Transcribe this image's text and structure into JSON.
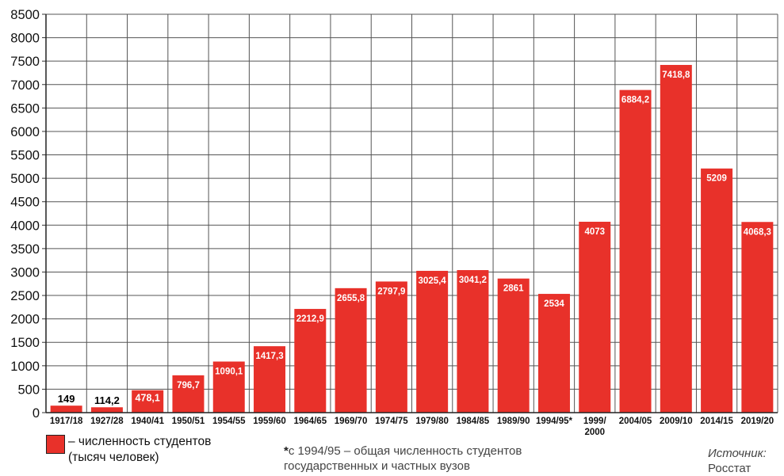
{
  "chart_data": {
    "type": "bar",
    "categories": [
      "1917/18",
      "1927/28",
      "1940/41",
      "1950/51",
      "1954/55",
      "1959/60",
      "1964/65",
      "1969/70",
      "1974/75",
      "1979/80",
      "1984/85",
      "1989/90",
      "1994/95*",
      "1999/ 2000",
      "2004/05",
      "2009/10",
      "2014/15",
      "2019/20"
    ],
    "values": [
      149,
      114.2,
      478.1,
      796.7,
      1090.1,
      1417.3,
      2212.9,
      2655.8,
      2797.9,
      3025.4,
      3041.2,
      2861,
      2534,
      4073,
      6884.2,
      7418.8,
      5209,
      4068.3
    ],
    "value_labels": [
      "149",
      "114,2",
      "478,1",
      "796,7",
      "1090,1",
      "1417,3",
      "2212,9",
      "2655,8",
      "2797,9",
      "3025,4",
      "3041,2",
      "2861",
      "2534",
      "4073",
      "6884,2",
      "7418,8",
      "5209",
      "4068,3"
    ],
    "yticks": [
      0,
      500,
      1000,
      1500,
      2000,
      2500,
      3000,
      3500,
      4000,
      4500,
      5000,
      5500,
      6000,
      6500,
      7000,
      7500,
      8000,
      8500
    ],
    "ylim": [
      0,
      8500
    ],
    "grid": true,
    "bar_color": "#e8312a",
    "legend_position": "bottom-left"
  },
  "legend": {
    "line1": "– численность студентов",
    "line2": "(тысяч человек)"
  },
  "footnote": {
    "star": "*",
    "line1": "с 1994/95 – общая численность студентов",
    "line2": "государственных и частных вузов"
  },
  "source": {
    "label": "Источник:",
    "name": "Росстат"
  }
}
